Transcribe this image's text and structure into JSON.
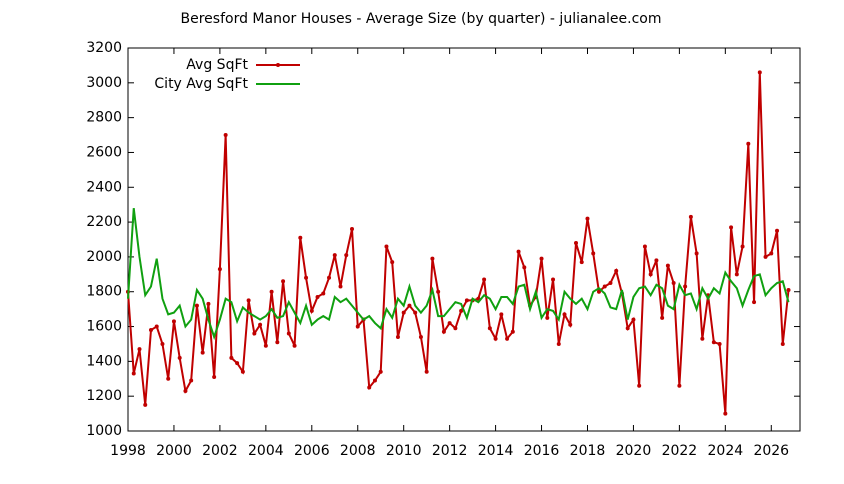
{
  "chart_data": {
    "type": "line",
    "title": "Beresford Manor Houses - Average Size (by quarter) - julianalee.com",
    "x": [
      1998,
      1998.25,
      1998.5,
      1998.75,
      1999,
      1999.25,
      1999.5,
      1999.75,
      2000,
      2000.25,
      2000.5,
      2000.75,
      2001,
      2001.25,
      2001.5,
      2001.75,
      2002,
      2002.25,
      2002.5,
      2002.75,
      2003,
      2003.25,
      2003.5,
      2003.75,
      2004,
      2004.25,
      2004.5,
      2004.75,
      2005,
      2005.25,
      2005.5,
      2005.75,
      2006,
      2006.25,
      2006.5,
      2006.75,
      2007,
      2007.25,
      2007.5,
      2007.75,
      2008,
      2008.25,
      2008.5,
      2008.75,
      2009,
      2009.25,
      2009.5,
      2009.75,
      2010,
      2010.25,
      2010.5,
      2010.75,
      2011,
      2011.25,
      2011.5,
      2011.75,
      2012,
      2012.25,
      2012.5,
      2012.75,
      2013,
      2013.25,
      2013.5,
      2013.75,
      2014,
      2014.25,
      2014.5,
      2014.75,
      2015,
      2015.25,
      2015.5,
      2015.75,
      2016,
      2016.25,
      2016.5,
      2016.75,
      2017,
      2017.25,
      2017.5,
      2017.75,
      2018,
      2018.25,
      2018.5,
      2018.75,
      2019,
      2019.25,
      2019.5,
      2019.75,
      2020,
      2020.25,
      2020.5,
      2020.75,
      2021,
      2021.25,
      2021.5,
      2021.75,
      2022,
      2022.25,
      2022.5,
      2022.75,
      2023,
      2023.25,
      2023.5,
      2023.75,
      2024,
      2024.25,
      2024.5,
      2024.75,
      2025,
      2025.25,
      2025.5,
      2025.75,
      2026,
      2026.25,
      2026.5,
      2026.75
    ],
    "series": [
      {
        "name": "Avg SqFt",
        "color": "#c00000",
        "markers": true,
        "values": [
          1800,
          1330,
          1470,
          1150,
          1580,
          1600,
          1500,
          1300,
          1630,
          1420,
          1230,
          1290,
          1720,
          1450,
          1730,
          1310,
          1930,
          2700,
          1420,
          1390,
          1340,
          1750,
          1560,
          1610,
          1490,
          1800,
          1510,
          1860,
          1560,
          1490,
          2110,
          1880,
          1690,
          1770,
          1790,
          1880,
          2010,
          1830,
          2010,
          2160,
          1600,
          1640,
          1250,
          1290,
          1340,
          2060,
          1970,
          1540,
          1680,
          1720,
          1680,
          1540,
          1340,
          1990,
          1800,
          1570,
          1620,
          1590,
          1690,
          1750,
          1750,
          1760,
          1870,
          1590,
          1530,
          1670,
          1530,
          1570,
          2030,
          1940,
          1720,
          1770,
          1990,
          1650,
          1870,
          1500,
          1670,
          1610,
          2080,
          1970,
          2220,
          2020,
          1800,
          1830,
          1850,
          1920,
          1790,
          1590,
          1640,
          1260,
          2060,
          1900,
          1980,
          1650,
          1950,
          1850,
          1260,
          1830,
          2230,
          2020,
          1530,
          1780,
          1510,
          1500,
          1100,
          2170,
          1900,
          2060,
          2650,
          1740,
          3060,
          2000,
          2020,
          2150,
          1500,
          1810
        ]
      },
      {
        "name": "City Avg SqFt",
        "color": "#10a010",
        "markers": false,
        "values": [
          1760,
          2280,
          2000,
          1780,
          1830,
          1990,
          1760,
          1670,
          1680,
          1720,
          1600,
          1640,
          1810,
          1760,
          1640,
          1540,
          1640,
          1760,
          1740,
          1630,
          1710,
          1680,
          1660,
          1640,
          1660,
          1700,
          1650,
          1660,
          1740,
          1680,
          1620,
          1720,
          1610,
          1640,
          1660,
          1640,
          1770,
          1740,
          1760,
          1720,
          1680,
          1640,
          1660,
          1620,
          1590,
          1700,
          1650,
          1760,
          1720,
          1830,
          1720,
          1680,
          1720,
          1810,
          1660,
          1660,
          1700,
          1740,
          1730,
          1650,
          1760,
          1740,
          1780,
          1760,
          1700,
          1770,
          1770,
          1730,
          1830,
          1840,
          1700,
          1800,
          1650,
          1700,
          1690,
          1640,
          1800,
          1760,
          1730,
          1760,
          1700,
          1800,
          1820,
          1790,
          1710,
          1700,
          1810,
          1640,
          1770,
          1820,
          1830,
          1780,
          1840,
          1820,
          1720,
          1700,
          1840,
          1780,
          1790,
          1700,
          1820,
          1760,
          1820,
          1790,
          1910,
          1860,
          1820,
          1720,
          1810,
          1890,
          1900,
          1780,
          1820,
          1850,
          1860,
          1740
        ]
      }
    ],
    "xlim": [
      1998,
      2027.25
    ],
    "xticks": [
      1998,
      2000,
      2002,
      2004,
      2006,
      2008,
      2010,
      2012,
      2014,
      2016,
      2018,
      2020,
      2022,
      2024,
      2026
    ],
    "ylim": [
      1000,
      3200
    ],
    "yticks": [
      1000,
      1200,
      1400,
      1600,
      1800,
      2000,
      2200,
      2400,
      2600,
      2800,
      3000,
      3200
    ],
    "grid": false,
    "legend": "top-left"
  }
}
